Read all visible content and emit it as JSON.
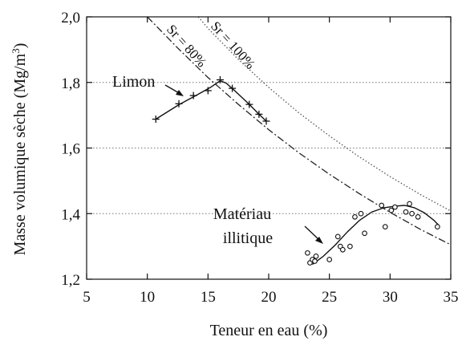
{
  "chart_data": {
    "type": "scatter",
    "xlabel": "Teneur en eau (%)",
    "ylabel": "Masse volumique sèche (Mg/m",
    "ylabel_sup": "3",
    "ylabel_end": ")",
    "xlim": [
      5,
      35
    ],
    "ylim": [
      1.2,
      2.0
    ],
    "x_ticks": [
      5,
      10,
      15,
      20,
      25,
      30,
      35
    ],
    "x_tick_labels": [
      "5",
      "10",
      "15",
      "20",
      "25",
      "30",
      "35"
    ],
    "y_ticks": [
      1.2,
      1.4,
      1.6,
      1.8,
      2.0
    ],
    "y_tick_labels": [
      "1,2",
      "1,4",
      "1,6",
      "1,8",
      "2,0"
    ],
    "grid": "horizontal dotted",
    "series": [
      {
        "name": "Limon",
        "marker": "plus",
        "points": [
          [
            10.7,
            1.688
          ],
          [
            12.6,
            1.735
          ],
          [
            13.8,
            1.76
          ],
          [
            15.0,
            1.775
          ],
          [
            16.0,
            1.808
          ],
          [
            17.0,
            1.782
          ],
          [
            18.4,
            1.733
          ],
          [
            19.2,
            1.703
          ],
          [
            19.8,
            1.682
          ]
        ],
        "fit": [
          [
            10.7,
            1.688
          ],
          [
            12.6,
            1.732
          ],
          [
            14.1,
            1.762
          ],
          [
            15.2,
            1.785
          ],
          [
            16.0,
            1.805
          ],
          [
            16.5,
            1.798
          ],
          [
            17.2,
            1.775
          ],
          [
            18.4,
            1.733
          ],
          [
            19.2,
            1.703
          ],
          [
            19.8,
            1.682
          ]
        ]
      },
      {
        "name": "Matériau illitique",
        "marker": "circle",
        "points": [
          [
            23.2,
            1.28
          ],
          [
            23.4,
            1.25
          ],
          [
            23.6,
            1.26
          ],
          [
            23.8,
            1.255
          ],
          [
            23.9,
            1.27
          ],
          [
            25.0,
            1.26
          ],
          [
            25.7,
            1.33
          ],
          [
            25.9,
            1.3
          ],
          [
            26.1,
            1.29
          ],
          [
            26.7,
            1.3
          ],
          [
            27.1,
            1.39
          ],
          [
            27.6,
            1.4
          ],
          [
            27.9,
            1.34
          ],
          [
            29.3,
            1.425
          ],
          [
            29.6,
            1.36
          ],
          [
            30.1,
            1.41
          ],
          [
            30.4,
            1.42
          ],
          [
            31.3,
            1.405
          ],
          [
            31.6,
            1.43
          ],
          [
            31.8,
            1.4
          ],
          [
            32.3,
            1.39
          ],
          [
            33.9,
            1.36
          ]
        ],
        "fit": [
          [
            23.6,
            1.245
          ],
          [
            24.5,
            1.27
          ],
          [
            25.5,
            1.305
          ],
          [
            26.5,
            1.345
          ],
          [
            27.5,
            1.38
          ],
          [
            28.5,
            1.405
          ],
          [
            29.5,
            1.418
          ],
          [
            30.5,
            1.423
          ],
          [
            31.2,
            1.425
          ],
          [
            32.0,
            1.418
          ],
          [
            32.8,
            1.403
          ],
          [
            33.6,
            1.38
          ],
          [
            34.0,
            1.365
          ]
        ]
      }
    ],
    "reference_curves": [
      {
        "name": "Sr = 100%",
        "style": "dotted",
        "points": [
          [
            14.2,
            2.0
          ],
          [
            15,
            1.965
          ],
          [
            17.5,
            1.87
          ],
          [
            20,
            1.785
          ],
          [
            22.5,
            1.707
          ],
          [
            25,
            1.637
          ],
          [
            27.5,
            1.572
          ],
          [
            30,
            1.513
          ],
          [
            32.5,
            1.458
          ],
          [
            35,
            1.408
          ]
        ]
      },
      {
        "name": "Sr = 80%",
        "style": "dash-dot",
        "points": [
          [
            10.0,
            2.0
          ],
          [
            12.5,
            1.905
          ],
          [
            15,
            1.815
          ],
          [
            17.5,
            1.733
          ],
          [
            20,
            1.656
          ],
          [
            22.5,
            1.585
          ],
          [
            25,
            1.52
          ],
          [
            27.5,
            1.46
          ],
          [
            30,
            1.404
          ],
          [
            32.5,
            1.352
          ],
          [
            35,
            1.305
          ]
        ]
      }
    ],
    "annotations": {
      "limon": "Limon",
      "materiau_1": "Matériau",
      "materiau_2": "illitique",
      "sr100": "Sr = 100%",
      "sr80": "Sr = 80%"
    }
  }
}
